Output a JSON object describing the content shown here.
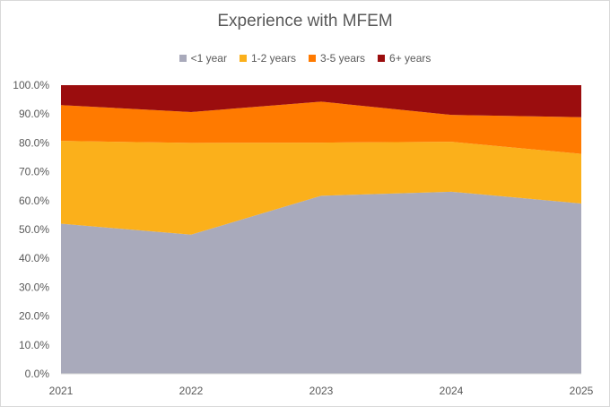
{
  "chart_data": {
    "type": "area",
    "stacked": "100%",
    "title": "Experience with MFEM",
    "categories": [
      "2021",
      "2022",
      "2023",
      "2024",
      "2025"
    ],
    "series": [
      {
        "name": "<1 year",
        "color": "#a9aabb",
        "values": [
          52.0,
          48.2,
          61.7,
          63.1,
          59.0
        ]
      },
      {
        "name": "1-2 years",
        "color": "#fbb01b",
        "values": [
          28.7,
          31.8,
          18.4,
          17.3,
          17.2
        ]
      },
      {
        "name": "3-5 years",
        "color": "#ff7a00",
        "values": [
          12.4,
          10.7,
          14.2,
          9.3,
          12.7
        ]
      },
      {
        "name": "6+ years",
        "color": "#9b0d0e",
        "values": [
          6.9,
          9.3,
          5.7,
          10.3,
          11.1
        ]
      }
    ],
    "yticks": [
      "0.0%",
      "10.0%",
      "20.0%",
      "30.0%",
      "40.0%",
      "50.0%",
      "60.0%",
      "70.0%",
      "80.0%",
      "90.0%",
      "100.0%"
    ],
    "ylim": [
      0,
      100
    ],
    "legend": "top",
    "grid": false
  }
}
